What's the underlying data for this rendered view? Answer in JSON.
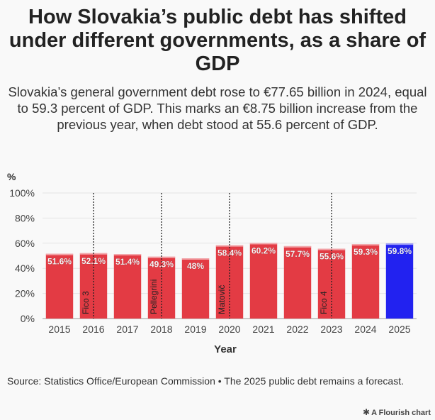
{
  "title": "How Slovakia’s public debt has shifted under different governments, as a share of GDP",
  "subtitle": "Slovakia’s general government debt rose to €77.65 billion in 2024, equal to 59.3 percent of GDP. This marks an €8.75 billion increase from the previous year, when debt stood at 55.6 percent of GDP.",
  "source": "Source: Statistics Office/European Commission • The 2025 public debt remains a forecast.",
  "credit": "A Flourish chart",
  "credit_icon": "flourish-star-icon",
  "colors": {
    "actual": "#e33b44",
    "forecast": "#2222f0"
  },
  "chart_data": {
    "type": "bar",
    "xlabel": "Year",
    "ylabel": "%",
    "ylim": [
      0,
      100
    ],
    "yticks": [
      0,
      20,
      40,
      60,
      80,
      100
    ],
    "ytick_labels": [
      "0%",
      "20%",
      "40%",
      "60%",
      "80%",
      "100%"
    ],
    "categories": [
      "2015",
      "2016",
      "2017",
      "2018",
      "2019",
      "2020",
      "2021",
      "2022",
      "2023",
      "2024",
      "2025"
    ],
    "values": [
      51.6,
      52.1,
      51.4,
      49.3,
      48,
      58.4,
      60.2,
      57.7,
      55.6,
      59.3,
      59.8
    ],
    "data_labels": [
      "51.6%",
      "52.1%",
      "51.4%",
      "49.3%",
      "48%",
      "58.4%",
      "60.2%",
      "57.7%",
      "55.6%",
      "59.3%",
      "59.8%"
    ],
    "forecast_category": "2025",
    "grid": true,
    "annotations": [
      {
        "category": "2016",
        "label": "Fico 3"
      },
      {
        "category": "2018",
        "label": "Pellegrini"
      },
      {
        "category": "2020",
        "label": "Matovič"
      },
      {
        "category": "2023",
        "label": "Fico 4"
      }
    ]
  }
}
